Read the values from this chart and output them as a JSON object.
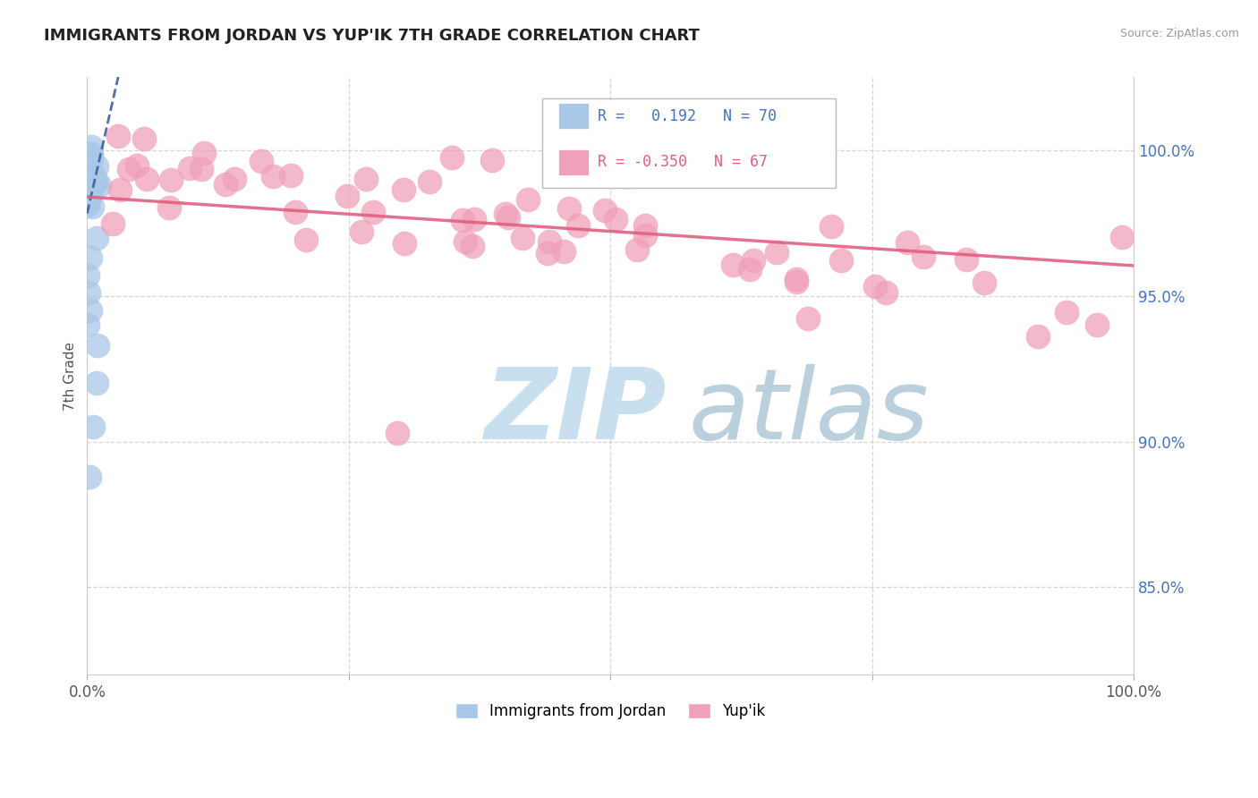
{
  "title": "IMMIGRANTS FROM JORDAN VS YUP'IK 7TH GRADE CORRELATION CHART",
  "source": "Source: ZipAtlas.com",
  "ylabel": "7th Grade",
  "r_jordan": 0.192,
  "n_jordan": 70,
  "r_yupik": -0.35,
  "n_yupik": 67,
  "color_jordan": "#a8c8e8",
  "color_jordan_line": "#4060a0",
  "color_yupik": "#f0a0b8",
  "color_yupik_line": "#e06080",
  "color_axis_labels": "#4472c4",
  "y_tick_labels": [
    "85.0%",
    "90.0%",
    "95.0%",
    "100.0%"
  ],
  "y_tick_values": [
    0.85,
    0.9,
    0.95,
    1.0
  ],
  "xlim": [
    0.0,
    1.0
  ],
  "ylim": [
    0.82,
    1.025
  ],
  "background_color": "#ffffff",
  "grid_color": "#cccccc",
  "watermark_zip_color": "#c8dff0",
  "watermark_atlas_color": "#b0c8d8"
}
